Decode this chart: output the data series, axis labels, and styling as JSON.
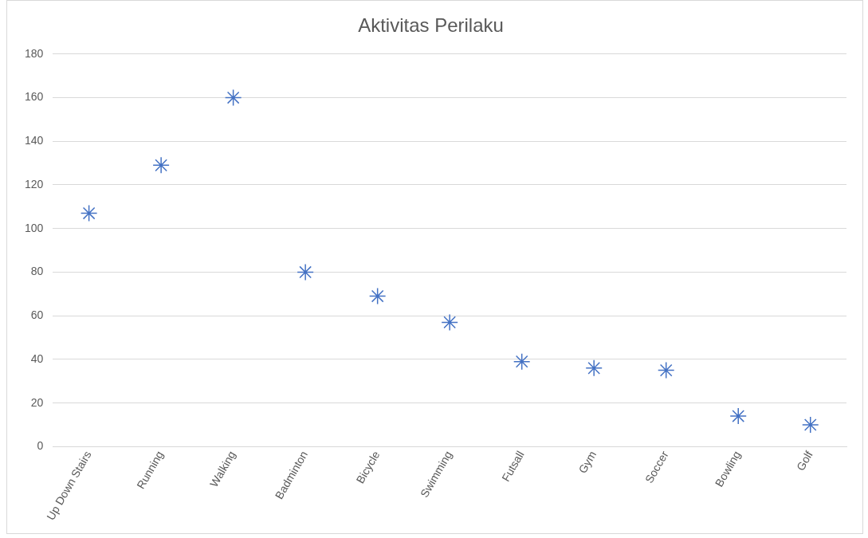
{
  "chart_data": {
    "type": "scatter",
    "title": "Aktivitas Perilaku",
    "categories": [
      "Up Down Stairs",
      "Running",
      "Walking",
      "Badminton",
      "Bicycle",
      "Swimming",
      "Futsall",
      "Gym",
      "Soccer",
      "Bowling",
      "Golf"
    ],
    "values": [
      107,
      129,
      160,
      80,
      69,
      57,
      39,
      36,
      35,
      14,
      10
    ],
    "color": "#4472c4",
    "marker": "cross",
    "ylim": [
      0,
      180
    ],
    "yticks": [
      0,
      20,
      40,
      60,
      80,
      100,
      120,
      140,
      160,
      180
    ],
    "grid": "y",
    "legend": false
  }
}
